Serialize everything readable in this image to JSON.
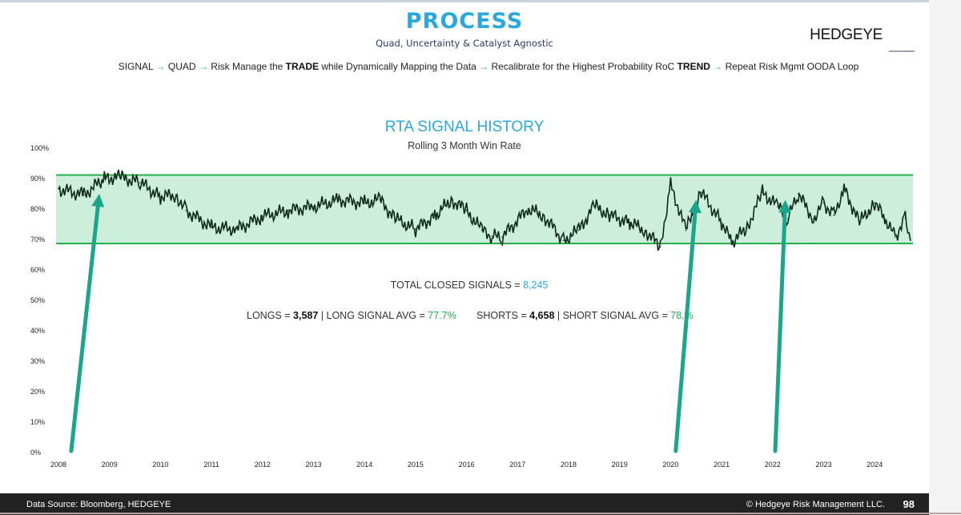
{
  "header": {
    "title": "PROCESS",
    "subtitle": "Quad, Uncertainty & Catalyst Agnostic",
    "logo": "HEDGEYE",
    "process": [
      {
        "text": "SIGNAL "
      },
      {
        "arrow": "→"
      },
      {
        "text": " QUAD "
      },
      {
        "arrow": " → "
      },
      {
        "text": " Risk Manage the "
      },
      {
        "bold": "TRADE"
      },
      {
        "text": " while Dynamically Mapping the Data "
      },
      {
        "arrow": "→"
      },
      {
        "text": " Recalibrate for the Highest Probability RoC "
      },
      {
        "bold": "TREND"
      },
      {
        "arrow": " → "
      },
      {
        "text": "Repeat Risk Mgmt OODA Loop"
      }
    ]
  },
  "stats": {
    "total_label": "TOTAL CLOSED SIGNALS = ",
    "total_value": "8,245",
    "longs_label": "LONGS = ",
    "longs_value": "3,587",
    "long_avg_label": " | LONG SIGNAL AVG = ",
    "long_avg_value": "77.7%",
    "shorts_label": "SHORTS = ",
    "shorts_value": "4,658",
    "short_avg_label": " | SHORT SIGNAL AVG = ",
    "short_avg_value": "78.%"
  },
  "footer": {
    "source": "Data Source: Bloomberg, HEDGEYE",
    "copyright": "© Hedgeye Risk Management LLC.",
    "page": "98"
  },
  "colors": {
    "accent": "#29a8e0",
    "band_fill": "#cdeedb",
    "band_line": "#22b04b",
    "series": "#0f2a1c",
    "arrow": "#1aa68a"
  },
  "chart_data": {
    "type": "line",
    "title": "RTA SIGNAL HISTORY",
    "subtitle": "Rolling 3 Month Win Rate",
    "ylim": [
      0,
      100
    ],
    "xlim": [
      2008,
      2024.75
    ],
    "yticks": [
      "0%",
      "10%",
      "20%",
      "30%",
      "40%",
      "50%",
      "60%",
      "70%",
      "80%",
      "90%",
      "100%"
    ],
    "xticks": [
      "2008",
      "2009",
      "2010",
      "2011",
      "2012",
      "2013",
      "2014",
      "2015",
      "2016",
      "2017",
      "2018",
      "2019",
      "2020",
      "2021",
      "2022",
      "2023",
      "2024"
    ],
    "band": {
      "low": 68.7,
      "high": 91.2
    },
    "series": [
      {
        "x": [
          2008.0,
          2008.5,
          2008.9,
          2009.2,
          2009.6,
          2010.0,
          2010.3,
          2010.5,
          2011.0,
          2011.5,
          2012.0,
          2012.5,
          2013.0,
          2013.5,
          2014.0,
          2014.3,
          2014.6,
          2015.0,
          2015.4,
          2015.7,
          2016.0,
          2016.3,
          2016.5,
          2016.7,
          2017.2,
          2017.5,
          2017.9,
          2018.2,
          2018.5,
          2018.8,
          2019.2,
          2019.5,
          2019.8,
          2020.0,
          2020.3,
          2020.6,
          2021.0,
          2021.2,
          2021.5,
          2021.8,
          2022.1,
          2022.3,
          2022.5,
          2022.8,
          2023.0,
          2023.2,
          2023.4,
          2023.7,
          2024.0,
          2024.2,
          2024.4,
          2024.6,
          2024.7
        ],
        "y": [
          86.6,
          84.7,
          90,
          90.5,
          88.7,
          84,
          84.7,
          79.5,
          74,
          73.4,
          77.6,
          79.5,
          80.8,
          83,
          82,
          83,
          76.8,
          73.4,
          78,
          83,
          79.5,
          73,
          71,
          70.8,
          80,
          78,
          69.7,
          73,
          81,
          78,
          75.5,
          73,
          67.6,
          88,
          73,
          85.5,
          75.5,
          69,
          74,
          85.5,
          80.8,
          76.8,
          85,
          76.8,
          82,
          78,
          86.8,
          75.5,
          82,
          76.8,
          70.8,
          77,
          69.7
        ]
      }
    ],
    "annotations": [
      {
        "type": "arrow",
        "from": [
          2008.25,
          0.5
        ],
        "to": [
          2008.8,
          85
        ]
      },
      {
        "type": "arrow",
        "from": [
          2020.1,
          0.5
        ],
        "to": [
          2020.5,
          83
        ]
      },
      {
        "type": "arrow",
        "from": [
          2022.05,
          0.5
        ],
        "to": [
          2022.25,
          83
        ]
      }
    ]
  }
}
